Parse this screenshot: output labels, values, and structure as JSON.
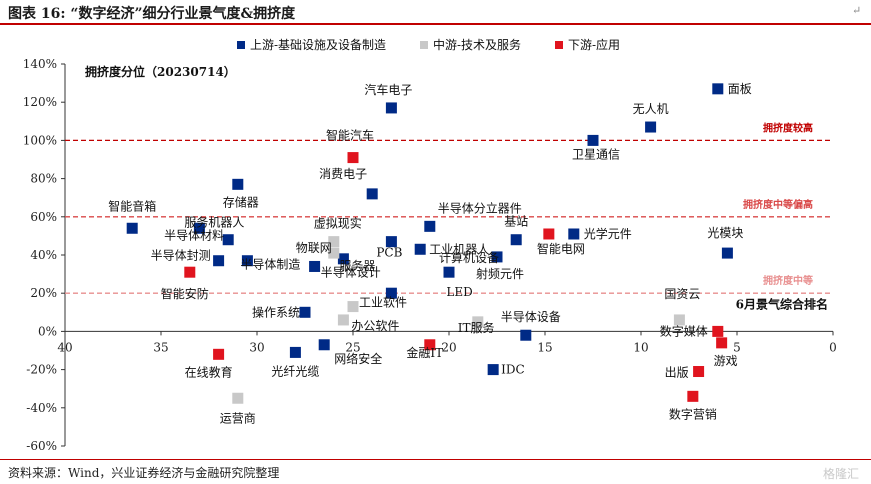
{
  "header": {
    "title": "图表 16: “数字经济”细分行业景气度&拥挤度",
    "mark": "↵"
  },
  "footer": {
    "source": "资料来源：Wind，兴业证券经济与金融研究院整理",
    "watermark": "格隆汇"
  },
  "chart_data": {
    "type": "scatter",
    "inner_title": "拥挤度分位（20230714）",
    "xlabel_note": "6月景气综合排名",
    "x_reversed": true,
    "xlim": [
      40,
      0
    ],
    "ylim": [
      -60,
      140
    ],
    "x_ticks": [
      40,
      35,
      30,
      25,
      20,
      15,
      10,
      5,
      0
    ],
    "y_ticks": [
      -60,
      -40,
      -20,
      0,
      20,
      40,
      60,
      80,
      100,
      120,
      140
    ],
    "y_tick_format": "percent",
    "colors": {
      "upstream": "#002a86",
      "midstream": "#c8c8c8",
      "downstream": "#e0141e",
      "line_high": "#c00000",
      "line_mid": "#d94848",
      "line_low": "#e88f8f"
    },
    "legend": [
      {
        "key": "upstream",
        "label": "上游-基础设施及设备制造"
      },
      {
        "key": "midstream",
        "label": "中游-技术及服务"
      },
      {
        "key": "downstream",
        "label": "下游-应用"
      }
    ],
    "ref_lines": [
      {
        "y": 100,
        "label": "拥挤度较高",
        "style": "high"
      },
      {
        "y": 60,
        "label": "拥挤度中等偏高",
        "style": "mid"
      },
      {
        "y": 20,
        "label": "拥挤度中等",
        "style": "low"
      }
    ],
    "points": [
      {
        "name": "面板",
        "x": 6,
        "y": 127,
        "series": "upstream"
      },
      {
        "name": "汽车电子",
        "x": 23,
        "y": 117,
        "series": "upstream"
      },
      {
        "name": "无人机",
        "x": 9.5,
        "y": 107,
        "series": "upstream"
      },
      {
        "name": "卫星通信",
        "x": 12.5,
        "y": 100,
        "series": "upstream"
      },
      {
        "name": "智能汽车",
        "x": 25,
        "y": 91,
        "series": "downstream"
      },
      {
        "name": "存储器",
        "x": 31,
        "y": 77,
        "series": "upstream"
      },
      {
        "name": "消费电子",
        "x": 24,
        "y": 72,
        "series": "upstream"
      },
      {
        "name": "半导体分立器件",
        "x": 21,
        "y": 55,
        "series": "upstream"
      },
      {
        "name": "智能音箱",
        "x": 36.5,
        "y": 54,
        "series": "upstream"
      },
      {
        "name": "服务机器人",
        "x": 33,
        "y": 54,
        "series": "upstream"
      },
      {
        "name": "基站",
        "x": 16.5,
        "y": 48,
        "series": "upstream"
      },
      {
        "name": "智能电网",
        "x": 14.8,
        "y": 51,
        "series": "downstream"
      },
      {
        "name": "光学元件",
        "x": 13.5,
        "y": 51,
        "series": "upstream"
      },
      {
        "name": "半导体材料",
        "x": 31.5,
        "y": 48,
        "series": "upstream"
      },
      {
        "name": "虚拟现实",
        "x": 26,
        "y": 47,
        "series": "midstream"
      },
      {
        "name": "PCB",
        "x": 23,
        "y": 47,
        "series": "upstream"
      },
      {
        "name": "工业机器人",
        "x": 21.5,
        "y": 43,
        "series": "upstream"
      },
      {
        "name": "服务器",
        "x": 25.5,
        "y": 38,
        "series": "upstream"
      },
      {
        "name": "物联网",
        "x": 26,
        "y": 41,
        "series": "midstream"
      },
      {
        "name": "光模块",
        "x": 5.5,
        "y": 41,
        "series": "upstream"
      },
      {
        "name": "射频元件",
        "x": 17.5,
        "y": 39,
        "series": "upstream"
      },
      {
        "name": "半导体封测",
        "x": 32,
        "y": 37,
        "series": "upstream"
      },
      {
        "name": "半导体制造",
        "x": 30.5,
        "y": 37,
        "series": "upstream"
      },
      {
        "name": "半导体设计",
        "x": 27,
        "y": 34,
        "series": "upstream"
      },
      {
        "name": "智能安防",
        "x": 33.5,
        "y": 31,
        "series": "downstream"
      },
      {
        "name": "计算机设备",
        "x": 20,
        "y": 31,
        "series": "upstream"
      },
      {
        "name": "LED",
        "x": 23,
        "y": 20,
        "series": "upstream"
      },
      {
        "name": "工业软件",
        "x": 25,
        "y": 13,
        "series": "midstream"
      },
      {
        "name": "操作系统",
        "x": 27.5,
        "y": 10,
        "series": "upstream"
      },
      {
        "name": "办公软件",
        "x": 25.5,
        "y": 6,
        "series": "midstream"
      },
      {
        "name": "IT服务",
        "x": 18.5,
        "y": 5,
        "series": "midstream"
      },
      {
        "name": "半导体设备",
        "x": 16,
        "y": -2,
        "series": "upstream"
      },
      {
        "name": "国资云",
        "x": 8,
        "y": 6,
        "series": "midstream"
      },
      {
        "name": "数字媒体",
        "x": 6,
        "y": 0,
        "series": "downstream"
      },
      {
        "name": "游戏",
        "x": 5.8,
        "y": -6,
        "series": "downstream"
      },
      {
        "name": "在线教育",
        "x": 32,
        "y": -12,
        "series": "downstream"
      },
      {
        "name": "光纤光缆",
        "x": 28,
        "y": -11,
        "series": "upstream"
      },
      {
        "name": "网络安全",
        "x": 26.5,
        "y": -7,
        "series": "upstream"
      },
      {
        "name": "金融IT",
        "x": 21,
        "y": -7,
        "series": "downstream"
      },
      {
        "name": "IDC",
        "x": 17.7,
        "y": -20,
        "series": "upstream"
      },
      {
        "name": "出版",
        "x": 7,
        "y": -21,
        "series": "downstream"
      },
      {
        "name": "数字营销",
        "x": 7.3,
        "y": -34,
        "series": "downstream"
      },
      {
        "name": "运营商",
        "x": 31,
        "y": -35,
        "series": "midstream"
      }
    ]
  }
}
